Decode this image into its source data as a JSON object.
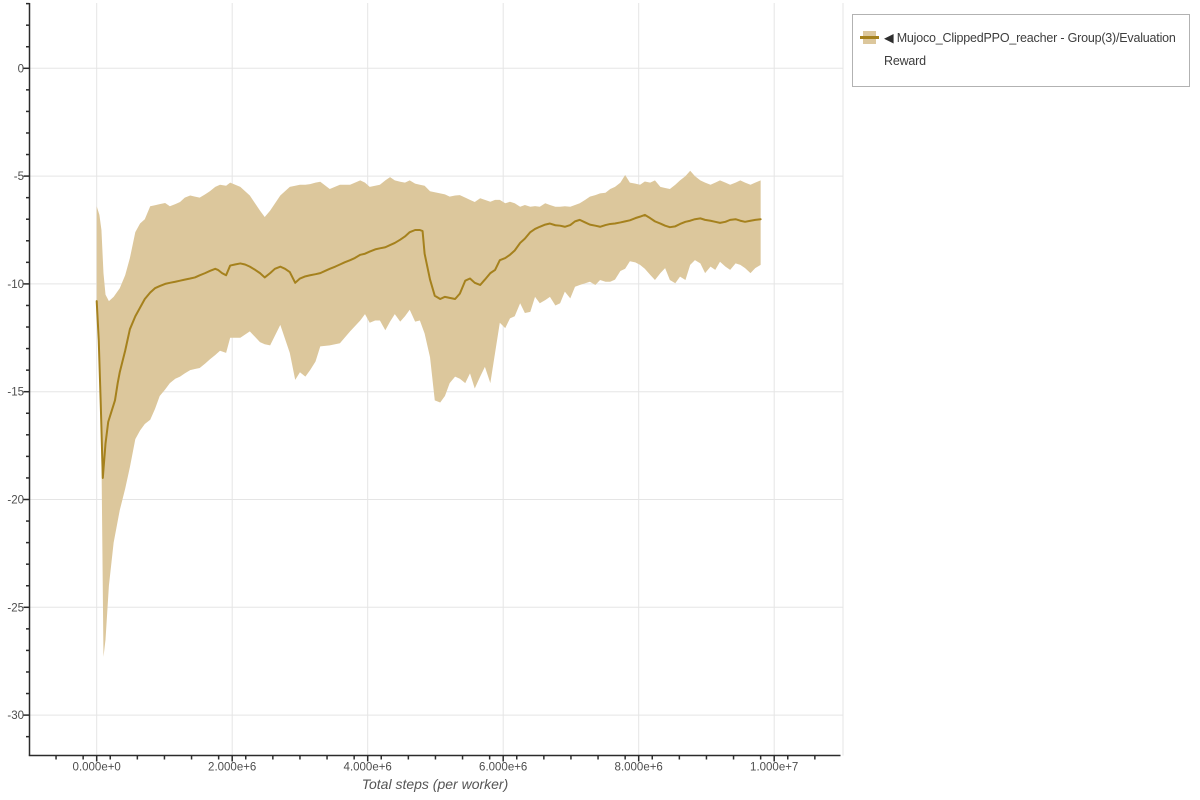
{
  "xaxis_title": "Total steps (per worker)",
  "legend": {
    "toggle_icon": "◀",
    "label": "Mujoco_ClippedPPO_reacher - Group(3)/Evaluation Reward"
  },
  "chart_data": {
    "type": "line",
    "title": "",
    "xlabel": "Total steps (per worker)",
    "ylabel": "",
    "grid": true,
    "legend_position": "top-right-outside",
    "xlim": [
      -1000000,
      11000000
    ],
    "ylim": [
      -31.9,
      3.0
    ],
    "x_unit": "steps",
    "x_scale": 1000000,
    "x_ticks": {
      "values": [
        0,
        2000000,
        4000000,
        6000000,
        8000000,
        10000000
      ],
      "labels": [
        "0.000e+0",
        "2.000e+6",
        "4.000e+6",
        "6.000e+6",
        "8.000e+6",
        "1.000e+7"
      ],
      "minor_step": 400000
    },
    "y_ticks": {
      "values": [
        0,
        -5,
        -10,
        -15,
        -20,
        -25,
        -30
      ],
      "labels": [
        "0",
        "-5",
        "-10",
        "-15",
        "-20",
        "-25",
        "-30"
      ],
      "minor_step": 1
    },
    "colors": {
      "line": "#a5811d",
      "band": "#dcc79c",
      "grid": "#e5e5e5",
      "axis": "#2b2b2b",
      "tick_label": "#4d4d4d",
      "axis_title": "#555555",
      "legend_border": "#b2b2b2",
      "legend_text": "#3d3d3d",
      "background": "#ffffff"
    },
    "series": [
      {
        "name": "Mujoco_ClippedPPO_reacher - Group(3)/Evaluation Reward (mean)",
        "type": "line",
        "x": [
          0,
          0.03,
          0.06,
          0.09,
          0.13,
          0.17,
          0.22,
          0.27,
          0.31,
          0.34,
          0.42,
          0.49,
          0.57,
          0.64,
          0.71,
          0.79,
          0.86,
          0.93,
          1.01,
          1.08,
          1.16,
          1.23,
          1.3,
          1.38,
          1.45,
          1.52,
          1.6,
          1.67,
          1.75,
          1.79,
          1.85,
          1.91,
          1.97,
          2.04,
          2.12,
          2.19,
          2.26,
          2.34,
          2.41,
          2.48,
          2.56,
          2.63,
          2.71,
          2.78,
          2.85,
          2.93,
          3,
          3.08,
          3.15,
          3.23,
          3.3,
          3.37,
          3.44,
          3.52,
          3.59,
          3.66,
          3.74,
          3.81,
          3.89,
          3.96,
          4.03,
          4.11,
          4.18,
          4.26,
          4.33,
          4.4,
          4.48,
          4.55,
          4.62,
          4.7,
          4.77,
          4.81,
          4.84,
          4.92,
          4.99,
          5.07,
          5.14,
          5.21,
          5.29,
          5.36,
          5.44,
          5.51,
          5.58,
          5.66,
          5.73,
          5.81,
          5.88,
          5.95,
          6.03,
          6.1,
          6.17,
          6.25,
          6.32,
          6.4,
          6.47,
          6.54,
          6.62,
          6.69,
          6.77,
          6.84,
          6.91,
          6.99,
          7.06,
          7.13,
          7.21,
          7.28,
          7.36,
          7.43,
          7.51,
          7.58,
          7.65,
          7.73,
          7.8,
          7.87,
          7.95,
          8.02,
          8.09,
          8.17,
          8.24,
          8.32,
          8.39,
          8.46,
          8.54,
          8.61,
          8.69,
          8.76,
          8.83,
          8.91,
          8.98,
          9.06,
          9.13,
          9.2,
          9.28,
          9.35,
          9.43,
          9.5,
          9.57,
          9.65,
          9.72,
          9.8
        ],
        "y": [
          -10.8,
          -12.6,
          -15.6,
          -19,
          -17.4,
          -16.4,
          -15.9,
          -15.4,
          -14.6,
          -14.1,
          -13.1,
          -12.1,
          -11.5,
          -11.1,
          -10.7,
          -10.4,
          -10.2,
          -10.1,
          -10,
          -9.95,
          -9.9,
          -9.85,
          -9.8,
          -9.75,
          -9.7,
          -9.6,
          -9.5,
          -9.4,
          -9.3,
          -9.35,
          -9.5,
          -9.6,
          -9.15,
          -9.1,
          -9.05,
          -9.1,
          -9.2,
          -9.35,
          -9.5,
          -9.7,
          -9.5,
          -9.3,
          -9.2,
          -9.3,
          -9.45,
          -9.95,
          -9.75,
          -9.65,
          -9.6,
          -9.55,
          -9.5,
          -9.4,
          -9.3,
          -9.2,
          -9.1,
          -9,
          -8.9,
          -8.8,
          -8.65,
          -8.6,
          -8.5,
          -8.4,
          -8.35,
          -8.3,
          -8.2,
          -8.1,
          -7.95,
          -7.8,
          -7.6,
          -7.5,
          -7.5,
          -7.55,
          -8.6,
          -9.8,
          -10.55,
          -10.7,
          -10.6,
          -10.65,
          -10.7,
          -10.45,
          -9.85,
          -9.75,
          -9.95,
          -10.05,
          -9.8,
          -9.5,
          -9.35,
          -8.9,
          -8.8,
          -8.65,
          -8.45,
          -8.1,
          -7.9,
          -7.6,
          -7.45,
          -7.35,
          -7.25,
          -7.2,
          -7.28,
          -7.3,
          -7.35,
          -7.27,
          -7.1,
          -7.03,
          -7.15,
          -7.25,
          -7.3,
          -7.35,
          -7.27,
          -7.22,
          -7.2,
          -7.15,
          -7.1,
          -7.05,
          -6.95,
          -6.88,
          -6.8,
          -6.95,
          -7.1,
          -7.2,
          -7.3,
          -7.37,
          -7.33,
          -7.22,
          -7.12,
          -7.07,
          -7,
          -6.96,
          -7.03,
          -7.07,
          -7.12,
          -7.17,
          -7.12,
          -7.03,
          -7,
          -7.07,
          -7.12,
          -7.07,
          -7.03,
          -7
        ]
      },
      {
        "name": "Mujoco_ClippedPPO_reacher - Group(3)/Evaluation Reward (min/max band)",
        "type": "band",
        "x": [
          0,
          0.04,
          0.07,
          0.1,
          0.13,
          0.18,
          0.25,
          0.34,
          0.42,
          0.49,
          0.57,
          0.64,
          0.71,
          0.79,
          0.86,
          0.93,
          1.01,
          1.08,
          1.16,
          1.23,
          1.3,
          1.38,
          1.45,
          1.52,
          1.6,
          1.67,
          1.75,
          1.82,
          1.91,
          1.97,
          2.12,
          2.26,
          2.41,
          2.48,
          2.56,
          2.71,
          2.85,
          2.93,
          3,
          3.08,
          3.15,
          3.23,
          3.3,
          3.44,
          3.59,
          3.74,
          3.89,
          3.96,
          4.03,
          4.11,
          4.18,
          4.26,
          4.33,
          4.4,
          4.48,
          4.55,
          4.62,
          4.7,
          4.77,
          4.84,
          4.92,
          4.99,
          5.07,
          5.14,
          5.21,
          5.29,
          5.36,
          5.44,
          5.51,
          5.58,
          5.66,
          5.73,
          5.81,
          5.88,
          5.95,
          6.03,
          6.1,
          6.17,
          6.25,
          6.32,
          6.4,
          6.47,
          6.54,
          6.62,
          6.69,
          6.77,
          6.84,
          6.91,
          6.99,
          7.06,
          7.13,
          7.21,
          7.28,
          7.36,
          7.43,
          7.51,
          7.58,
          7.65,
          7.73,
          7.8,
          7.87,
          7.95,
          8.02,
          8.09,
          8.17,
          8.24,
          8.32,
          8.39,
          8.46,
          8.54,
          8.61,
          8.69,
          8.76,
          8.83,
          8.91,
          8.98,
          9.06,
          9.13,
          9.2,
          9.28,
          9.35,
          9.43,
          9.5,
          9.57,
          9.65,
          9.72,
          9.8
        ],
        "top": [
          -6.4,
          -6.8,
          -7.5,
          -9.5,
          -10.5,
          -10.8,
          -10.6,
          -10.2,
          -9.6,
          -8.8,
          -7.6,
          -7.2,
          -7,
          -6.4,
          -6.35,
          -6.3,
          -6.25,
          -6.4,
          -6.3,
          -6.2,
          -6,
          -5.9,
          -5.95,
          -6,
          -5.85,
          -5.7,
          -5.5,
          -5.4,
          -5.45,
          -5.3,
          -5.5,
          -5.9,
          -6.6,
          -6.9,
          -6.6,
          -5.9,
          -5.5,
          -5.45,
          -5.4,
          -5.4,
          -5.37,
          -5.3,
          -5.26,
          -5.6,
          -5.4,
          -5.4,
          -5.2,
          -5.3,
          -5.5,
          -5.45,
          -5.4,
          -5.2,
          -5.05,
          -5.2,
          -5.26,
          -5.3,
          -5.2,
          -5.35,
          -5.4,
          -5.45,
          -5.7,
          -5.75,
          -5.8,
          -5.85,
          -5.95,
          -5.9,
          -5.88,
          -6,
          -6.1,
          -6.2,
          -6.03,
          -6.1,
          -6.19,
          -6.1,
          -6.1,
          -6.26,
          -6.19,
          -6.26,
          -6.42,
          -6.34,
          -6.42,
          -6.39,
          -6.42,
          -6.26,
          -6.34,
          -6.42,
          -6.42,
          -6.4,
          -6.42,
          -6.34,
          -6.26,
          -6.1,
          -5.95,
          -5.88,
          -5.8,
          -5.77,
          -5.6,
          -5.5,
          -5.3,
          -4.95,
          -5.3,
          -5.35,
          -5.4,
          -5.25,
          -5.3,
          -5.2,
          -5.5,
          -5.55,
          -5.6,
          -5.4,
          -5.2,
          -5,
          -4.75,
          -5,
          -5.2,
          -5.3,
          -5.4,
          -5.3,
          -5.2,
          -5.3,
          -5.4,
          -5.3,
          -5.2,
          -5.3,
          -5.4,
          -5.3,
          -5.2
        ],
        "bottom": [
          -11.3,
          -13.5,
          -18,
          -27.3,
          -26.5,
          -24,
          -22,
          -20.5,
          -19.5,
          -18.5,
          -17.2,
          -16.8,
          -16.5,
          -16.3,
          -15.8,
          -15.2,
          -14.9,
          -14.6,
          -14.4,
          -14.3,
          -14.15,
          -14,
          -13.95,
          -13.9,
          -13.7,
          -13.5,
          -13.3,
          -13.1,
          -13.2,
          -12.5,
          -12.5,
          -12.2,
          -12.7,
          -12.8,
          -12.85,
          -11.9,
          -13.2,
          -14.45,
          -14.1,
          -14.3,
          -14,
          -13.6,
          -12.9,
          -12.85,
          -12.75,
          -12.2,
          -11.7,
          -11.4,
          -11.8,
          -11.7,
          -11.7,
          -12.15,
          -11.75,
          -11.4,
          -11.75,
          -11.5,
          -11.2,
          -11.75,
          -11.7,
          -12.3,
          -13.4,
          -15.4,
          -15.5,
          -15.2,
          -14.6,
          -14.3,
          -14.4,
          -14.6,
          -14.15,
          -14.85,
          -14.3,
          -13.85,
          -14.6,
          -13.2,
          -11.8,
          -12.05,
          -11.6,
          -11.5,
          -10.9,
          -11.35,
          -11.3,
          -10.6,
          -10.9,
          -10.75,
          -10.6,
          -11,
          -10.9,
          -10.36,
          -10.67,
          -10.13,
          -10.05,
          -9.97,
          -9.9,
          -10.05,
          -9.82,
          -9.9,
          -9.9,
          -9.8,
          -9.4,
          -9.3,
          -8.95,
          -9,
          -9.12,
          -9.3,
          -9.58,
          -9.82,
          -9.5,
          -9.27,
          -9.82,
          -9.97,
          -9.66,
          -9.82,
          -9.12,
          -8.9,
          -9.05,
          -9.5,
          -9.2,
          -9.35,
          -8.97,
          -9.2,
          -9.35,
          -9.05,
          -9.12,
          -9.27,
          -9.5,
          -9.27,
          -9.12
        ]
      }
    ]
  }
}
